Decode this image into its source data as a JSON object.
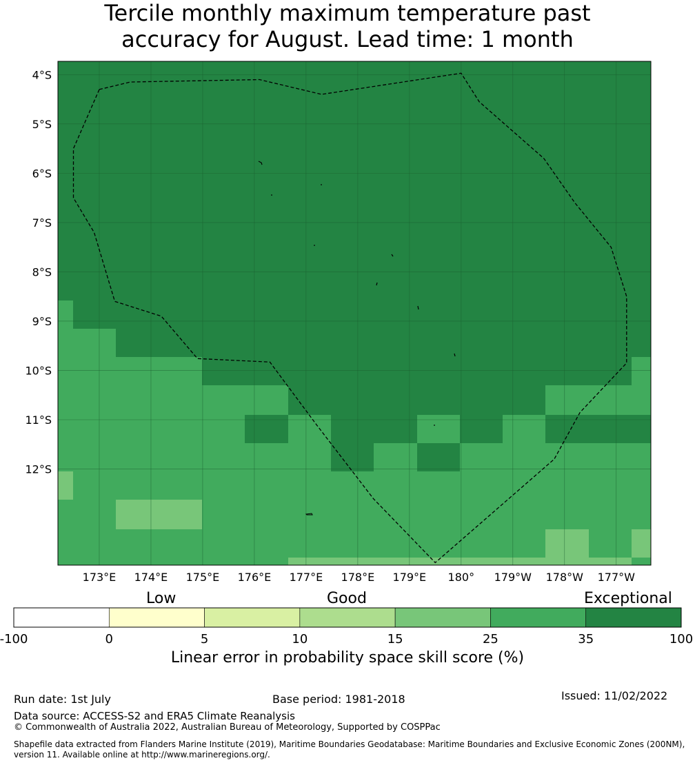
{
  "title_line1": "Tercile monthly maximum temperature past",
  "title_line2": "accuracy for August. Lead time: 1 month",
  "map": {
    "lon_ticks": [
      "173°E",
      "174°E",
      "175°E",
      "176°E",
      "177°E",
      "178°E",
      "179°E",
      "180°",
      "179°W",
      "178°W",
      "177°W"
    ],
    "lon_values": [
      173,
      174,
      175,
      176,
      177,
      178,
      179,
      180,
      181,
      182,
      183
    ],
    "lat_ticks": [
      "4°S",
      "5°S",
      "6°S",
      "7°S",
      "8°S",
      "9°S",
      "10°S",
      "11°S",
      "12°S"
    ],
    "lat_values": [
      -4,
      -5,
      -6,
      -7,
      -8,
      -9,
      -10,
      -11,
      -12
    ],
    "lon_range": [
      172.2,
      183.67
    ],
    "lat_range": [
      -13.95,
      -3.73
    ],
    "class_colors": {
      "c15": "#78c679",
      "c25": "#41ab5d",
      "c35": "#238443"
    },
    "eez_boundary_lonlat": [
      [
        173.0,
        -4.3
      ],
      [
        173.6,
        -4.15
      ],
      [
        176.1,
        -4.1
      ],
      [
        177.3,
        -4.4
      ],
      [
        180.0,
        -3.97
      ],
      [
        180.35,
        -4.55
      ],
      [
        181.6,
        -5.7
      ],
      [
        182.2,
        -6.6
      ],
      [
        182.9,
        -7.5
      ],
      [
        183.2,
        -8.5
      ],
      [
        183.2,
        -9.2
      ],
      [
        183.2,
        -9.6
      ],
      [
        183.2,
        -9.85
      ],
      [
        182.3,
        -10.85
      ],
      [
        181.8,
        -11.8
      ],
      [
        179.5,
        -13.9
      ],
      [
        178.3,
        -12.6
      ],
      [
        177.2,
        -11.1
      ],
      [
        176.3,
        -9.83
      ],
      [
        174.9,
        -9.76
      ],
      [
        174.2,
        -8.9
      ],
      [
        173.3,
        -8.6
      ],
      [
        172.9,
        -7.2
      ],
      [
        172.5,
        -6.5
      ],
      [
        172.5,
        -5.5
      ],
      [
        173.0,
        -4.3
      ]
    ]
  },
  "colorbar": {
    "categories": [
      "Low",
      "Good",
      "Exceptional"
    ],
    "tick_labels": [
      "-100",
      "0",
      "5",
      "10",
      "15",
      "25",
      "35",
      "100"
    ],
    "colors": [
      "#ffffff",
      "#ffffcc",
      "#d9f0a3",
      "#addd8e",
      "#78c679",
      "#41ab5d",
      "#238443"
    ],
    "label": "Linear error in probability space skill score (%)"
  },
  "footer": {
    "run_date": "Run date: 1st July",
    "base_period": "Base period: 1981-2018",
    "issued": "Issued: 11/02/2022",
    "data_source": "Data source: ACCESS-S2 and ERA5 Climate Reanalysis",
    "copyright": "© Commonwealth of Australia 2022, Australian Bureau of Meteorology, Supported by COSPPac",
    "shapefile": "Shapefile data extracted from Flanders Marine Institute (2019), Maritime Boundaries Geodatabase: Maritime Boundaries and Exclusive Economic Zones (200NM), version 11. Available online at http://www.marineregions.org/."
  }
}
